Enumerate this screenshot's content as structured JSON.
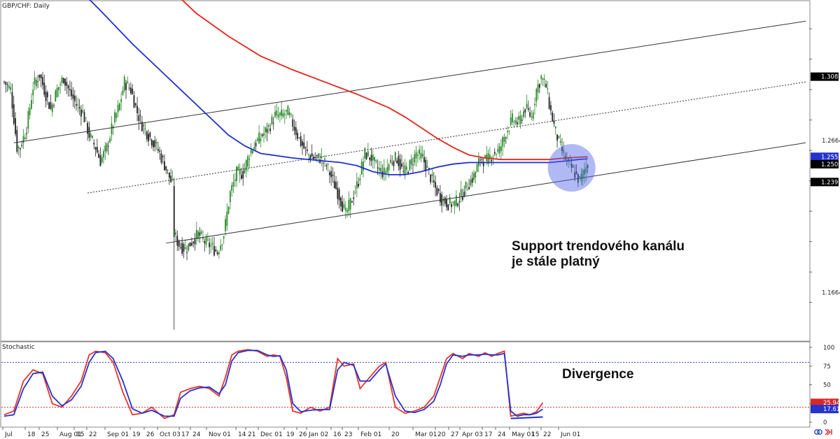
{
  "chart_data": [
    {
      "type": "candlestick",
      "title": "GBP/CHF: Daily",
      "ylim": [
        1.135,
        1.358
      ],
      "x_tick_labels": [
        "Jul",
        "18",
        "25",
        "Aug 01",
        "15",
        "22",
        "Sep 01",
        "19",
        "26",
        "Oct 03",
        "17",
        "24",
        "Nov 01",
        "14",
        "21",
        "Dec 01",
        "19",
        "26",
        "Jan 02",
        "16",
        "23",
        "Feb 01",
        "20",
        "Mar 01",
        "20",
        "27",
        "Apr 03",
        "17",
        "24",
        "May 01",
        "15",
        "22",
        "Jun 01"
      ],
      "y_tick_labels": [
        "1.3085",
        "1.2664",
        "1.2392",
        "1.1664"
      ],
      "price_labels": [
        {
          "text": "1.3085",
          "value": 1.3085,
          "color": "#000000"
        },
        {
          "text": "1.2558",
          "value": 1.2558,
          "color": "#2633cc"
        },
        {
          "text": "1.2509",
          "value": 1.2509,
          "color": "#000000"
        },
        {
          "text": "1.2392",
          "value": 1.2392,
          "color": "#000000"
        }
      ],
      "close_path": [
        [
          0,
          1.305
        ],
        [
          4,
          1.3
        ],
        [
          8,
          1.262
        ],
        [
          10,
          1.262
        ],
        [
          14,
          1.275
        ],
        [
          18,
          1.302
        ],
        [
          22,
          1.31
        ],
        [
          25,
          1.3
        ],
        [
          29,
          1.287
        ],
        [
          33,
          1.3
        ],
        [
          37,
          1.308
        ],
        [
          41,
          1.298
        ],
        [
          45,
          1.29
        ],
        [
          49,
          1.285
        ],
        [
          53,
          1.27
        ],
        [
          57,
          1.262
        ],
        [
          60,
          1.253
        ],
        [
          64,
          1.262
        ],
        [
          68,
          1.278
        ],
        [
          72,
          1.29
        ],
        [
          75,
          1.305
        ],
        [
          79,
          1.3
        ],
        [
          83,
          1.285
        ],
        [
          86,
          1.277
        ],
        [
          90,
          1.27
        ],
        [
          94,
          1.264
        ],
        [
          97,
          1.258
        ],
        [
          101,
          1.248
        ],
        [
          105,
          1.237
        ],
        [
          106,
          1.205
        ],
        [
          109,
          1.198
        ],
        [
          113,
          1.195
        ],
        [
          117,
          1.2
        ],
        [
          121,
          1.205
        ],
        [
          125,
          1.2
        ],
        [
          129,
          1.197
        ],
        [
          133,
          1.193
        ],
        [
          137,
          1.205
        ],
        [
          141,
          1.232
        ],
        [
          145,
          1.245
        ],
        [
          149,
          1.245
        ],
        [
          153,
          1.258
        ],
        [
          157,
          1.265
        ],
        [
          161,
          1.27
        ],
        [
          165,
          1.275
        ],
        [
          169,
          1.283
        ],
        [
          173,
          1.283
        ],
        [
          177,
          1.285
        ],
        [
          181,
          1.275
        ],
        [
          185,
          1.265
        ],
        [
          189,
          1.258
        ],
        [
          193,
          1.255
        ],
        [
          197,
          1.255
        ],
        [
          201,
          1.25
        ],
        [
          205,
          1.24
        ],
        [
          209,
          1.23
        ],
        [
          213,
          1.218
        ],
        [
          217,
          1.228
        ],
        [
          221,
          1.24
        ],
        [
          225,
          1.258
        ],
        [
          229,
          1.255
        ],
        [
          233,
          1.248
        ],
        [
          237,
          1.245
        ],
        [
          241,
          1.253
        ],
        [
          245,
          1.255
        ],
        [
          249,
          1.245
        ],
        [
          253,
          1.25
        ],
        [
          257,
          1.258
        ],
        [
          261,
          1.255
        ],
        [
          265,
          1.245
        ],
        [
          269,
          1.235
        ],
        [
          273,
          1.228
        ],
        [
          277,
          1.225
        ],
        [
          281,
          1.225
        ],
        [
          285,
          1.23
        ],
        [
          289,
          1.237
        ],
        [
          293,
          1.243
        ],
        [
          297,
          1.255
        ],
        [
          301,
          1.253
        ],
        [
          305,
          1.258
        ],
        [
          309,
          1.26
        ],
        [
          313,
          1.272
        ],
        [
          317,
          1.28
        ],
        [
          321,
          1.278
        ],
        [
          325,
          1.288
        ],
        [
          329,
          1.282
        ],
        [
          332,
          1.3
        ],
        [
          335,
          1.308
        ],
        [
          338,
          1.302
        ],
        [
          341,
          1.285
        ],
        [
          344,
          1.272
        ],
        [
          347,
          1.262
        ],
        [
          350,
          1.255
        ],
        [
          353,
          1.25
        ],
        [
          356,
          1.245
        ],
        [
          359,
          1.24
        ],
        [
          362,
          1.247
        ],
        [
          364,
          1.251
        ]
      ],
      "sma_blue": [
        [
          43,
          1.37
        ],
        [
          60,
          1.352
        ],
        [
          80,
          1.33
        ],
        [
          100,
          1.31
        ],
        [
          120,
          1.29
        ],
        [
          140,
          1.27
        ],
        [
          150,
          1.263
        ],
        [
          160,
          1.258
        ],
        [
          180,
          1.255
        ],
        [
          200,
          1.253
        ],
        [
          210,
          1.252
        ],
        [
          220,
          1.25
        ],
        [
          230,
          1.246
        ],
        [
          240,
          1.244
        ],
        [
          250,
          1.244
        ],
        [
          260,
          1.246
        ],
        [
          270,
          1.249
        ],
        [
          280,
          1.251
        ],
        [
          290,
          1.252
        ],
        [
          300,
          1.252
        ],
        [
          310,
          1.252
        ],
        [
          320,
          1.252
        ],
        [
          330,
          1.252
        ],
        [
          340,
          1.252
        ],
        [
          350,
          1.253
        ],
        [
          358,
          1.254
        ],
        [
          364,
          1.2545
        ]
      ],
      "sma_red": [
        [
          100,
          1.37
        ],
        [
          120,
          1.35
        ],
        [
          140,
          1.335
        ],
        [
          160,
          1.322
        ],
        [
          180,
          1.313
        ],
        [
          200,
          1.305
        ],
        [
          220,
          1.297
        ],
        [
          240,
          1.288
        ],
        [
          250,
          1.282
        ],
        [
          260,
          1.275
        ],
        [
          270,
          1.268
        ],
        [
          280,
          1.262
        ],
        [
          290,
          1.257
        ],
        [
          300,
          1.255
        ],
        [
          310,
          1.254
        ],
        [
          320,
          1.254
        ],
        [
          330,
          1.254
        ],
        [
          340,
          1.254
        ],
        [
          350,
          1.255
        ],
        [
          358,
          1.2555
        ],
        [
          364,
          1.2558
        ]
      ],
      "channel_lines": [
        {
          "style": "solid",
          "from": [
            6,
            1.265
          ],
          "to": [
            500,
            1.345
          ]
        },
        {
          "style": "solid",
          "from": [
            101,
            1.199
          ],
          "to": [
            500,
            1.265
          ]
        },
        {
          "style": "dotted",
          "from": [
            52,
            1.232
          ],
          "to": [
            500,
            1.305
          ]
        }
      ],
      "annotations": [
        "Support trendového kanálu",
        "je stále platný"
      ]
    },
    {
      "type": "line",
      "title": "Stochastic",
      "ylim": [
        0,
        100
      ],
      "y_tick_labels": [
        "100",
        "75",
        "50",
        "25",
        "0"
      ],
      "levels": [
        80,
        20
      ],
      "value_labels": [
        {
          "text": "25.94",
          "value": 25.94,
          "color": "#d42a2a"
        },
        {
          "text": "17.61",
          "value": 17.61,
          "color": "#2633cc"
        }
      ],
      "series": [
        {
          "color": "#e8342a",
          "values": [
            [
              0,
              10
            ],
            [
              6,
              15
            ],
            [
              12,
              55
            ],
            [
              18,
              70
            ],
            [
              24,
              65
            ],
            [
              30,
              25
            ],
            [
              36,
              20
            ],
            [
              42,
              35
            ],
            [
              48,
              55
            ],
            [
              53,
              90
            ],
            [
              57,
              95
            ],
            [
              63,
              93
            ],
            [
              68,
              80
            ],
            [
              74,
              40
            ],
            [
              80,
              10
            ],
            [
              86,
              12
            ],
            [
              92,
              20
            ],
            [
              100,
              5
            ],
            [
              106,
              10
            ],
            [
              110,
              40
            ],
            [
              116,
              45
            ],
            [
              122,
              48
            ],
            [
              128,
              45
            ],
            [
              134,
              35
            ],
            [
              138,
              60
            ],
            [
              142,
              90
            ],
            [
              146,
              95
            ],
            [
              152,
              97
            ],
            [
              158,
              95
            ],
            [
              164,
              88
            ],
            [
              168,
              90
            ],
            [
              172,
              88
            ],
            [
              176,
              60
            ],
            [
              180,
              15
            ],
            [
              185,
              12
            ],
            [
              191,
              20
            ],
            [
              197,
              15
            ],
            [
              203,
              20
            ],
            [
              208,
              85
            ],
            [
              212,
              75
            ],
            [
              218,
              78
            ],
            [
              222,
              45
            ],
            [
              228,
              60
            ],
            [
              234,
              75
            ],
            [
              238,
              80
            ],
            [
              244,
              20
            ],
            [
              250,
              12
            ],
            [
              256,
              15
            ],
            [
              262,
              20
            ],
            [
              268,
              35
            ],
            [
              272,
              60
            ],
            [
              276,
              85
            ],
            [
              280,
              92
            ],
            [
              286,
              85
            ],
            [
              290,
              92
            ],
            [
              296,
              88
            ],
            [
              300,
              93
            ],
            [
              304,
              88
            ],
            [
              308,
              92
            ],
            [
              312,
              95
            ],
            [
              316,
              8
            ],
            [
              320,
              10
            ],
            [
              324,
              12
            ],
            [
              328,
              10
            ],
            [
              332,
              14
            ],
            [
              336,
              26
            ]
          ]
        },
        {
          "color": "#2633cc",
          "values": [
            [
              0,
              8
            ],
            [
              6,
              10
            ],
            [
              12,
              45
            ],
            [
              18,
              65
            ],
            [
              24,
              67
            ],
            [
              30,
              35
            ],
            [
              36,
              22
            ],
            [
              42,
              30
            ],
            [
              48,
              48
            ],
            [
              53,
              80
            ],
            [
              57,
              93
            ],
            [
              63,
              95
            ],
            [
              68,
              85
            ],
            [
              74,
              55
            ],
            [
              80,
              18
            ],
            [
              86,
              12
            ],
            [
              92,
              16
            ],
            [
              100,
              8
            ],
            [
              106,
              8
            ],
            [
              110,
              32
            ],
            [
              116,
              42
            ],
            [
              122,
              46
            ],
            [
              128,
              47
            ],
            [
              134,
              38
            ],
            [
              138,
              50
            ],
            [
              142,
              82
            ],
            [
              146,
              93
            ],
            [
              152,
              96
            ],
            [
              158,
              96
            ],
            [
              164,
              90
            ],
            [
              168,
              88
            ],
            [
              172,
              89
            ],
            [
              176,
              70
            ],
            [
              180,
              25
            ],
            [
              185,
              14
            ],
            [
              191,
              16
            ],
            [
              197,
              17
            ],
            [
              203,
              17
            ],
            [
              208,
              70
            ],
            [
              212,
              80
            ],
            [
              218,
              76
            ],
            [
              222,
              55
            ],
            [
              228,
              55
            ],
            [
              234,
              70
            ],
            [
              238,
              78
            ],
            [
              244,
              35
            ],
            [
              250,
              15
            ],
            [
              256,
              13
            ],
            [
              262,
              17
            ],
            [
              268,
              28
            ],
            [
              272,
              50
            ],
            [
              276,
              78
            ],
            [
              280,
              90
            ],
            [
              286,
              88
            ],
            [
              290,
              90
            ],
            [
              296,
              90
            ],
            [
              300,
              91
            ],
            [
              304,
              90
            ],
            [
              308,
              90
            ],
            [
              312,
              92
            ],
            [
              316,
              15
            ],
            [
              320,
              8
            ],
            [
              324,
              10
            ],
            [
              328,
              10
            ],
            [
              332,
              12
            ],
            [
              336,
              17.6
            ]
          ]
        }
      ],
      "annotations": [
        "Divergence"
      ]
    }
  ]
}
